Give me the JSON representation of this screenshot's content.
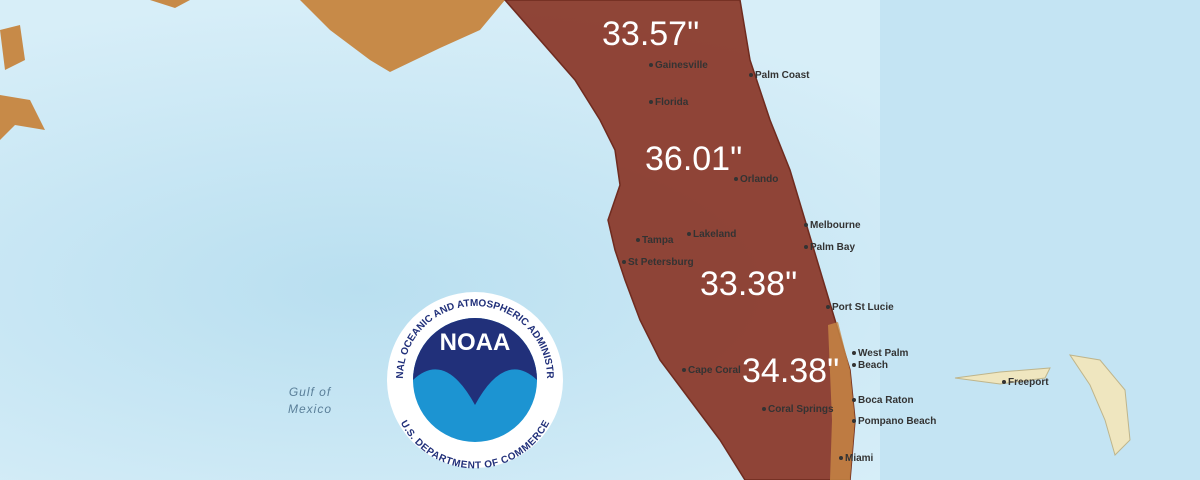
{
  "map": {
    "values": [
      "33.57\"",
      "36.01\"",
      "33.38\"",
      "34.38\""
    ],
    "places": [
      "Gainesville",
      "Palm Coast",
      "Florida",
      "Orlando",
      "Melbourne",
      "Palm Bay",
      "Tampa",
      "Lakeland",
      "St Petersburg",
      "Port St Lucie",
      "West Palm",
      "Beach",
      "Cape Coral",
      "Boca Raton",
      "Coral Springs",
      "Pompano Beach",
      "Miami",
      "Freeport"
    ],
    "water": [
      "Gulf of",
      "Mexico"
    ],
    "logo": {
      "wordmark": "NOAA",
      "ring_top": "NATIONAL OCEANIC AND ATMOSPHERIC ADMINISTRATION",
      "ring_bottom": "U.S. DEPARTMENT OF COMMERCE"
    }
  }
}
